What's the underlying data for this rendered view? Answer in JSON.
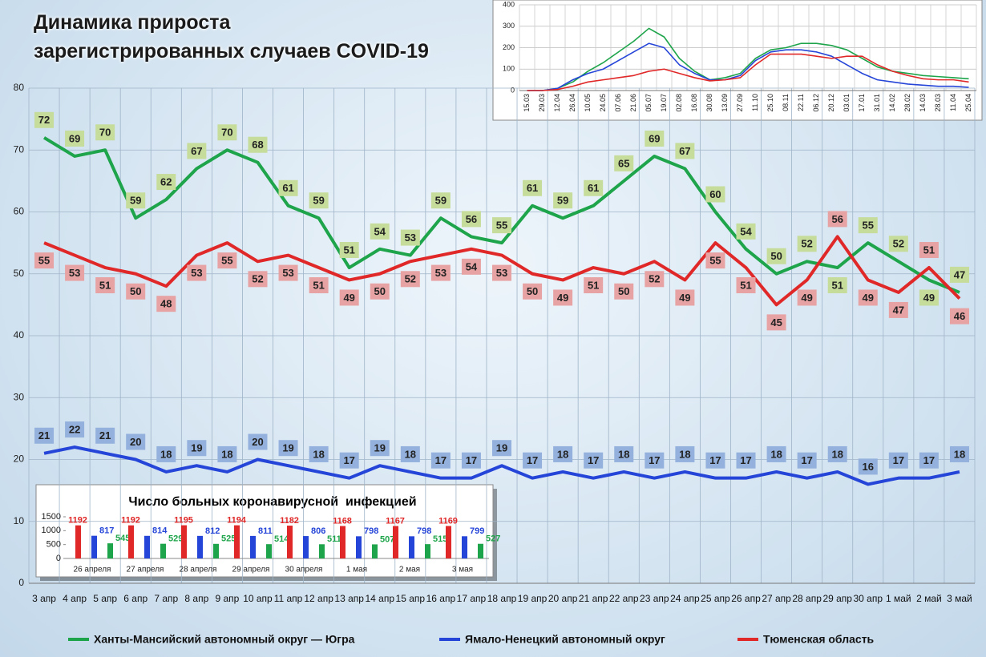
{
  "chart_data": [
    {
      "type": "line",
      "title": "Динамика прироста\nзарегистрированных случаев COVID-19",
      "categories": [
        "3 апр",
        "4 апр",
        "5 апр",
        "6 апр",
        "7 апр",
        "8 апр",
        "9 апр",
        "10 апр",
        "11 апр",
        "12 апр",
        "13 апр",
        "14 апр",
        "15 апр",
        "16 апр",
        "17 апр",
        "18 апр",
        "19 апр",
        "20 апр",
        "21 апр",
        "22 апр",
        "23 апр",
        "24 апр",
        "25 апр",
        "26 апр",
        "27 апр",
        "28 апр",
        "29 апр",
        "30 апр",
        "1 май",
        "2 май",
        "3 май"
      ],
      "series": [
        {
          "name": "Ханты-Мансийский автономный округ — Югра",
          "color": "#1ea44a",
          "values": [
            72,
            69,
            70,
            59,
            62,
            67,
            70,
            68,
            61,
            59,
            51,
            54,
            53,
            59,
            56,
            55,
            61,
            59,
            61,
            65,
            69,
            67,
            60,
            54,
            50,
            52,
            51,
            55,
            52,
            49,
            47
          ]
        },
        {
          "name": "Ямало-Ненецкий автономный округ",
          "color": "#2545d8",
          "values": [
            21,
            22,
            21,
            20,
            18,
            19,
            18,
            20,
            19,
            18,
            17,
            19,
            18,
            17,
            17,
            19,
            17,
            18,
            17,
            18,
            17,
            18,
            17,
            17,
            18,
            17,
            18,
            16,
            17,
            17,
            18
          ]
        },
        {
          "name": "Тюменская область",
          "color": "#e02828",
          "values": [
            55,
            53,
            51,
            50,
            48,
            53,
            55,
            52,
            53,
            51,
            49,
            50,
            52,
            53,
            54,
            53,
            50,
            49,
            51,
            50,
            52,
            49,
            55,
            51,
            45,
            49,
            56,
            49,
            47,
            51,
            46
          ]
        }
      ],
      "ylim": [
        0,
        80
      ],
      "yticks": [
        0,
        10,
        20,
        30,
        40,
        50,
        60,
        70,
        80
      ],
      "grid": true
    },
    {
      "type": "line",
      "categories": [
        "15.03",
        "29.03",
        "12.04",
        "26.04",
        "10.05",
        "24.05",
        "07.06",
        "21.06",
        "05.07",
        "19.07",
        "02.08",
        "16.08",
        "30.08",
        "13.09",
        "27.09",
        "11.10",
        "25.10",
        "08.11",
        "22.11",
        "06.12",
        "20.12",
        "03.01",
        "17.01",
        "31.01",
        "14.02",
        "28.02",
        "14.03",
        "28.03",
        "11.04",
        "25.04"
      ],
      "series": [
        {
          "color": "#1ea44a",
          "values": [
            0,
            0,
            10,
            40,
            90,
            130,
            180,
            230,
            290,
            250,
            150,
            90,
            50,
            60,
            80,
            150,
            190,
            200,
            220,
            220,
            210,
            190,
            150,
            110,
            90,
            80,
            70,
            65,
            60,
            55
          ]
        },
        {
          "color": "#2545d8",
          "values": [
            0,
            0,
            10,
            50,
            80,
            100,
            140,
            180,
            220,
            200,
            120,
            80,
            50,
            50,
            70,
            140,
            180,
            190,
            190,
            180,
            160,
            120,
            80,
            50,
            40,
            30,
            25,
            20,
            20,
            15
          ]
        },
        {
          "color": "#e02828",
          "values": [
            0,
            0,
            5,
            20,
            40,
            50,
            60,
            70,
            90,
            100,
            80,
            60,
            45,
            50,
            60,
            120,
            170,
            170,
            170,
            160,
            150,
            160,
            160,
            120,
            90,
            70,
            55,
            50,
            50,
            40
          ]
        }
      ],
      "ylim": [
        0,
        400
      ],
      "yticks": [
        0,
        100,
        200,
        300,
        400
      ],
      "grid": true
    },
    {
      "type": "bar",
      "title": "Число больных коронавирусной  инфекцией",
      "categories": [
        "26 апреля",
        "27 апреля",
        "28 апреля",
        "29 апреля",
        "30 апреля",
        "1 мая",
        "2 мая",
        "3 мая"
      ],
      "series": [
        {
          "color": "#e02828",
          "values": [
            1192,
            1192,
            1195,
            1194,
            1182,
            1168,
            1167,
            1169
          ]
        },
        {
          "color": "#2545d8",
          "values": [
            817,
            814,
            812,
            811,
            806,
            798,
            798,
            799
          ]
        },
        {
          "color": "#1ea44a",
          "values": [
            545,
            529,
            525,
            514,
            511,
            507,
            515,
            527
          ]
        }
      ],
      "ylim": [
        0,
        1500
      ],
      "yticks": [
        0,
        500,
        1000,
        1500
      ]
    }
  ]
}
